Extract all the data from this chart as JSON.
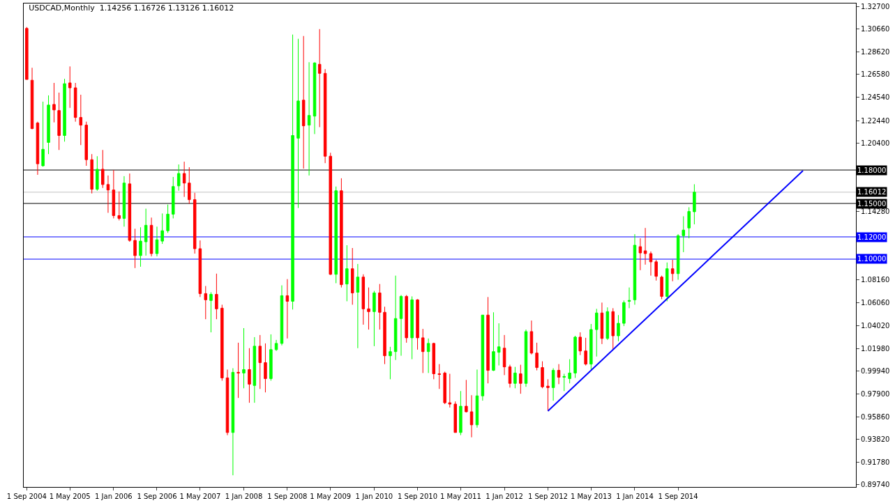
{
  "chart_data": {
    "type": "candlestick",
    "title": "USDCAD,Monthly  1.14256 1.16726 1.13126 1.16012",
    "x": [
      "2004-09",
      "2004-10",
      "2004-11",
      "2004-12",
      "2005-01",
      "2005-02",
      "2005-03",
      "2005-04",
      "2005-05",
      "2005-06",
      "2005-07",
      "2005-08",
      "2005-09",
      "2005-10",
      "2005-11",
      "2005-12",
      "2006-01",
      "2006-02",
      "2006-03",
      "2006-04",
      "2006-05",
      "2006-06",
      "2006-07",
      "2006-08",
      "2006-09",
      "2006-10",
      "2006-11",
      "2006-12",
      "2007-01",
      "2007-02",
      "2007-03",
      "2007-04",
      "2007-05",
      "2007-06",
      "2007-07",
      "2007-08",
      "2007-09",
      "2007-10",
      "2007-11",
      "2007-12",
      "2008-01",
      "2008-02",
      "2008-03",
      "2008-04",
      "2008-05",
      "2008-06",
      "2008-07",
      "2008-08",
      "2008-09",
      "2008-10",
      "2008-11",
      "2008-12",
      "2009-01",
      "2009-02",
      "2009-03",
      "2009-04",
      "2009-05",
      "2009-06",
      "2009-07",
      "2009-08",
      "2009-09",
      "2009-10",
      "2009-11",
      "2009-12",
      "2010-01",
      "2010-02",
      "2010-03",
      "2010-04",
      "2010-05",
      "2010-06",
      "2010-07",
      "2010-08",
      "2010-09",
      "2010-10",
      "2010-11",
      "2010-12",
      "2011-01",
      "2011-02",
      "2011-03",
      "2011-04",
      "2011-05",
      "2011-06",
      "2011-07",
      "2011-08",
      "2011-09",
      "2011-10",
      "2011-11",
      "2011-12",
      "2012-01",
      "2012-02",
      "2012-03",
      "2012-04",
      "2012-05",
      "2012-06",
      "2012-07",
      "2012-08",
      "2012-09",
      "2012-10",
      "2012-11",
      "2012-12",
      "2013-01",
      "2013-02",
      "2013-03",
      "2013-04",
      "2013-05",
      "2013-06",
      "2013-07",
      "2013-08",
      "2013-09",
      "2013-10",
      "2013-11",
      "2013-12",
      "2014-01",
      "2014-02",
      "2014-03",
      "2014-04",
      "2014-05",
      "2014-06",
      "2014-07",
      "2014-08",
      "2014-09",
      "2014-10",
      "2014-11",
      "2014-12"
    ],
    "ohlc": [
      [
        1.3071,
        1.3084,
        1.2613,
        1.2613
      ],
      [
        1.2606,
        1.2718,
        1.2166,
        1.2172
      ],
      [
        1.2222,
        1.2234,
        1.1757,
        1.1856
      ],
      [
        1.1838,
        1.2414,
        1.1831,
        1.1986
      ],
      [
        1.2048,
        1.247,
        1.1943,
        1.2383
      ],
      [
        1.2389,
        1.2582,
        1.2228,
        1.234
      ],
      [
        1.2334,
        1.2495,
        1.198,
        1.211
      ],
      [
        1.211,
        1.2619,
        1.2055,
        1.2575
      ],
      [
        1.2582,
        1.273,
        1.2358,
        1.2538
      ],
      [
        1.2538,
        1.2582,
        1.2234,
        1.2272
      ],
      [
        1.2272,
        1.2476,
        1.2024,
        1.2203
      ],
      [
        1.2203,
        1.2234,
        1.1838,
        1.1893
      ],
      [
        1.1893,
        1.1943,
        1.159,
        1.1627
      ],
      [
        1.1627,
        1.1924,
        1.1614,
        1.1807
      ],
      [
        1.1807,
        1.198,
        1.1639,
        1.167
      ],
      [
        1.167,
        1.1751,
        1.1416,
        1.1621
      ],
      [
        1.1621,
        1.18,
        1.1366,
        1.1391
      ],
      [
        1.1391,
        1.1608,
        1.1348,
        1.1366
      ],
      [
        1.1366,
        1.1745,
        1.1292,
        1.1683
      ],
      [
        1.1676,
        1.1769,
        1.1156,
        1.1168
      ],
      [
        1.1168,
        1.1273,
        1.092,
        1.1032
      ],
      [
        1.1032,
        1.1286,
        1.0932,
        1.1162
      ],
      [
        1.1156,
        1.1453,
        1.1032,
        1.1304
      ],
      [
        1.1304,
        1.1373,
        1.1025,
        1.105
      ],
      [
        1.105,
        1.1292,
        1.1025,
        1.1174
      ],
      [
        1.1162,
        1.141,
        1.1137,
        1.1255
      ],
      [
        1.1255,
        1.149,
        1.1236,
        1.1404
      ],
      [
        1.1404,
        1.1738,
        1.1366,
        1.1652
      ],
      [
        1.1658,
        1.185,
        1.1614,
        1.1769
      ],
      [
        1.1769,
        1.1875,
        1.1559,
        1.1683
      ],
      [
        1.1683,
        1.1825,
        1.1497,
        1.1534
      ],
      [
        1.1534,
        1.1596,
        1.105,
        1.1094
      ],
      [
        1.1094,
        1.1168,
        1.066,
        1.0691
      ],
      [
        1.0691,
        1.0759,
        1.0461,
        1.0635
      ],
      [
        1.0629,
        1.0703,
        1.0343,
        1.0684
      ],
      [
        1.0684,
        1.087,
        1.0461,
        1.0554
      ],
      [
        1.056,
        1.0591,
        0.9909,
        0.9934
      ],
      [
        0.9934,
        1.0009,
        0.942,
        0.9444
      ],
      [
        0.9444,
        1.0021,
        0.906,
        0.9984
      ],
      [
        0.9984,
        1.025,
        0.9754,
        0.9978
      ],
      [
        0.9978,
        1.0381,
        0.9841,
        1.0009
      ],
      [
        1.0009,
        1.0201,
        0.9711,
        0.9878
      ],
      [
        0.9866,
        1.03,
        0.9711,
        1.0219
      ],
      [
        1.0219,
        1.0319,
        0.9835,
        1.0071
      ],
      [
        1.0071,
        1.0244,
        0.9804,
        0.9928
      ],
      [
        0.9928,
        1.0325,
        0.9909,
        1.0188
      ],
      [
        1.0188,
        1.0275,
        1.0176,
        1.0244
      ],
      [
        1.0244,
        1.0765,
        1.0226,
        1.0672
      ],
      [
        1.0672,
        1.0821,
        1.0288,
        1.0622
      ],
      [
        1.0622,
        1.3016,
        1.0548,
        1.211
      ],
      [
        1.2086,
        1.2978,
        1.1459,
        1.242
      ],
      [
        1.2427,
        1.3003,
        1.1813,
        1.2197
      ],
      [
        1.2203,
        1.2768,
        1.1751,
        1.229
      ],
      [
        1.2284,
        1.2768,
        1.2123,
        1.2761
      ],
      [
        1.2749,
        1.3065,
        1.2185,
        1.2668
      ],
      [
        1.2668,
        1.2706,
        1.1862,
        1.1924
      ],
      [
        1.1924,
        1.1955,
        1.0858,
        1.0864
      ],
      [
        1.0864,
        1.1652,
        1.0784,
        1.1614
      ],
      [
        1.1614,
        1.1726,
        1.0746,
        1.0771
      ],
      [
        1.0777,
        1.1125,
        1.0622,
        1.0914
      ],
      [
        1.0914,
        1.11,
        1.0591,
        1.0697
      ],
      [
        1.0703,
        1.0957,
        1.0201,
        1.0839
      ],
      [
        1.0839,
        1.0864,
        1.0412,
        1.0554
      ],
      [
        1.0554,
        1.0746,
        1.0368,
        1.0529
      ],
      [
        1.0529,
        1.0715,
        1.0219,
        1.0697
      ],
      [
        1.0697,
        1.0777,
        1.0368,
        1.0523
      ],
      [
        1.0523,
        1.0573,
        1.0058,
        1.0133
      ],
      [
        1.0133,
        1.0213,
        0.9922,
        1.017
      ],
      [
        1.017,
        1.0852,
        1.0095,
        1.0467
      ],
      [
        1.0467,
        1.0678,
        1.0133,
        1.0666
      ],
      [
        1.0666,
        1.0678,
        1.025,
        1.0294
      ],
      [
        1.0294,
        1.0666,
        1.0102,
        1.0635
      ],
      [
        1.0635,
        1.0641,
        1.0188,
        1.0294
      ],
      [
        1.0294,
        1.0374,
        0.9978,
        1.017
      ],
      [
        1.017,
        1.0288,
        0.9978,
        1.0244
      ],
      [
        1.0244,
        1.025,
        0.9922,
        0.9971
      ],
      [
        0.9971,
        1.0058,
        0.9835,
        0.9965
      ],
      [
        0.9978,
        0.999,
        0.9699,
        0.9711
      ],
      [
        0.9711,
        0.9971,
        0.9668,
        0.9699
      ],
      [
        0.9699,
        0.9723,
        0.9444,
        0.9444
      ],
      [
        0.9444,
        0.9816,
        0.942,
        0.968
      ],
      [
        0.968,
        0.9916,
        0.9624,
        0.963
      ],
      [
        0.963,
        0.9779,
        0.9401,
        0.9513
      ],
      [
        0.9513,
        1.0009,
        0.9488,
        0.9773
      ],
      [
        0.9773,
        1.0498,
        0.973,
        1.0498
      ],
      [
        1.0498,
        1.066,
        0.9885,
        1.0002
      ],
      [
        1.0002,
        1.0523,
        0.9996,
        1.017
      ],
      [
        1.0164,
        1.0424,
        1.0046,
        1.0213
      ],
      [
        1.0201,
        1.0319,
        0.9959,
        1.0033
      ],
      [
        1.0033,
        1.0052,
        0.9847,
        0.9885
      ],
      [
        0.9885,
        1.0033,
        0.9841,
        0.9978
      ],
      [
        0.9971,
        1.0052,
        0.9792,
        0.9885
      ],
      [
        0.9885,
        1.0368,
        0.9854,
        1.035
      ],
      [
        1.035,
        1.0449,
        1.0145,
        1.0157
      ],
      [
        1.0157,
        1.025,
        1.0002,
        1.0027
      ],
      [
        1.0027,
        1.0083,
        0.9841,
        0.9854
      ],
      [
        0.986,
        0.9922,
        0.9637,
        0.9847
      ],
      [
        0.9847,
        1.0021,
        0.973,
        1.0002
      ],
      [
        1.0002,
        1.0058,
        0.9878,
        0.994
      ],
      [
        0.994,
        0.9971,
        0.9816,
        0.9947
      ],
      [
        0.9928,
        1.0102,
        0.9885,
        0.9978
      ],
      [
        0.9978,
        1.0312,
        0.9934,
        1.03
      ],
      [
        1.03,
        1.0343,
        1.0139,
        1.0176
      ],
      [
        1.0176,
        1.0294,
        1.0046,
        1.0058
      ],
      [
        1.0058,
        1.0418,
        1.0009,
        1.0368
      ],
      [
        1.0368,
        1.0554,
        1.0126,
        1.0517
      ],
      [
        1.0517,
        1.061,
        1.0238,
        1.0288
      ],
      [
        1.0288,
        1.0567,
        1.0275,
        1.0529
      ],
      [
        1.0529,
        1.056,
        1.0188,
        1.0312
      ],
      [
        1.0312,
        1.0498,
        1.0263,
        1.0424
      ],
      [
        1.0424,
        1.0629,
        1.0399,
        1.061
      ],
      [
        1.0622,
        1.0746,
        1.056,
        1.0629
      ],
      [
        1.0635,
        1.1224,
        1.0591,
        1.1125
      ],
      [
        1.1112,
        1.1187,
        1.0901,
        1.1056
      ],
      [
        1.1075,
        1.128,
        1.0951,
        1.105
      ],
      [
        1.105,
        1.1069,
        1.0852,
        1.0976
      ],
      [
        1.0976,
        1.0994,
        1.0808,
        1.0846
      ],
      [
        1.0839,
        1.0852,
        1.0641,
        1.0666
      ],
      [
        1.0666,
        1.097,
        1.0622,
        1.0914
      ],
      [
        1.0914,
        1.0994,
        1.0802,
        1.087
      ],
      [
        1.087,
        1.1224,
        1.0815,
        1.1211
      ],
      [
        1.1211,
        1.1385,
        1.1063,
        1.1261
      ],
      [
        1.128,
        1.1466,
        1.1187,
        1.1428
      ],
      [
        1.14256,
        1.16726,
        1.13126,
        1.16012
      ]
    ],
    "colors": [
      "#ff0000",
      "#ff0000",
      "#ff0000",
      "#00ff00",
      "#00ff00",
      "#ff0000",
      "#ff0000",
      "#00ff00",
      "#ff0000",
      "#ff0000",
      "#ff0000",
      "#ff0000",
      "#ff0000",
      "#00ff00",
      "#ff0000",
      "#ff0000",
      "#ff0000",
      "#ff0000",
      "#00ff00",
      "#ff0000",
      "#ff0000",
      "#00ff00",
      "#00ff00",
      "#ff0000",
      "#00ff00",
      "#00ff00",
      "#00ff00",
      "#00ff00",
      "#00ff00",
      "#ff0000",
      "#ff0000",
      "#ff0000",
      "#ff0000",
      "#ff0000",
      "#00ff00",
      "#ff0000",
      "#ff0000",
      "#ff0000",
      "#00ff00",
      "#ff0000",
      "#00ff00",
      "#ff0000",
      "#00ff00",
      "#ff0000",
      "#ff0000",
      "#00ff00",
      "#00ff00",
      "#00ff00",
      "#ff0000",
      "#00ff00",
      "#00ff00",
      "#ff0000",
      "#00ff00",
      "#00ff00",
      "#ff0000",
      "#ff0000",
      "#ff0000",
      "#00ff00",
      "#ff0000",
      "#00ff00",
      "#ff0000",
      "#00ff00",
      "#ff0000",
      "#ff0000",
      "#00ff00",
      "#ff0000",
      "#ff0000",
      "#00ff00",
      "#00ff00",
      "#00ff00",
      "#ff0000",
      "#00ff00",
      "#ff0000",
      "#ff0000",
      "#00ff00",
      "#ff0000",
      "#ff0000",
      "#ff0000",
      "#ff0000",
      "#ff0000",
      "#00ff00",
      "#ff0000",
      "#ff0000",
      "#00ff00",
      "#00ff00",
      "#ff0000",
      "#00ff00",
      "#00ff00",
      "#ff0000",
      "#ff0000",
      "#00ff00",
      "#ff0000",
      "#00ff00",
      "#ff0000",
      "#ff0000",
      "#ff0000",
      "#ff0000",
      "#00ff00",
      "#ff0000",
      "#00ff00",
      "#00ff00",
      "#00ff00",
      "#ff0000",
      "#ff0000",
      "#00ff00",
      "#00ff00",
      "#ff0000",
      "#00ff00",
      "#ff0000",
      "#00ff00",
      "#00ff00",
      "#00ff00",
      "#00ff00",
      "#ff0000",
      "#ff0000",
      "#ff0000",
      "#ff0000",
      "#ff0000",
      "#00ff00",
      "#ff0000",
      "#00ff00",
      "#00ff00",
      "#00ff00",
      "#00ff00"
    ],
    "series": [
      {
        "type": "line",
        "x": [
          "2012-09",
          "2016-08"
        ],
        "values": [
          0.9637,
          1.1794
        ],
        "color": "#0000ff"
      }
    ],
    "ref_lines": [
      {
        "axis": "y",
        "value": 1.18,
        "label": "1.18000",
        "color": "#000000"
      },
      {
        "axis": "y",
        "value": 1.16012,
        "label": "1.16012",
        "color": "#c0c0c0"
      },
      {
        "axis": "y",
        "value": 1.15,
        "label": "1.15000",
        "color": "#000000"
      },
      {
        "axis": "y",
        "value": 1.12,
        "label": "1.12000",
        "color": "#0000ff"
      },
      {
        "axis": "y",
        "value": 1.1,
        "label": "1.10000",
        "color": "#0000ff"
      }
    ],
    "xlim": [
      "2004-08-15",
      "2017-05-25"
    ],
    "xticks": [
      {
        "value": "2004-09",
        "label": "1 Sep 2004"
      },
      {
        "value": "2005-05",
        "label": "1 May 2005"
      },
      {
        "value": "2006-01",
        "label": "1 Jan 2006"
      },
      {
        "value": "2006-09",
        "label": "1 Sep 2006"
      },
      {
        "value": "2007-05",
        "label": "1 May 2007"
      },
      {
        "value": "2008-01",
        "label": "1 Jan 2008"
      },
      {
        "value": "2008-09",
        "label": "1 Sep 2008"
      },
      {
        "value": "2009-05",
        "label": "1 May 2009"
      },
      {
        "value": "2010-01",
        "label": "1 Jan 2010"
      },
      {
        "value": "2010-09",
        "label": "1 Sep 2010"
      },
      {
        "value": "2011-05",
        "label": "1 May 2011"
      },
      {
        "value": "2012-01",
        "label": "1 Jan 2012"
      },
      {
        "value": "2012-09",
        "label": "1 Sep 2012"
      },
      {
        "value": "2013-05",
        "label": "1 May 2013"
      },
      {
        "value": "2014-01",
        "label": "1 Jan 2014"
      },
      {
        "value": "2014-09",
        "label": "1 Sep 2014"
      }
    ],
    "ylim": [
      0.8955,
      1.3295
    ],
    "yticks": [
      {
        "value": 1.327,
        "label": "1.32700"
      },
      {
        "value": 1.3066,
        "label": "1.30660"
      },
      {
        "value": 1.2862,
        "label": "1.28620"
      },
      {
        "value": 1.2658,
        "label": "1.26580"
      },
      {
        "value": 1.2454,
        "label": "1.24540"
      },
      {
        "value": 1.2244,
        "label": "1.22440"
      },
      {
        "value": 1.204,
        "label": "1.20400"
      },
      {
        "value": 1.1428,
        "label": "1.14280"
      },
      {
        "value": 1.0816,
        "label": "1.08160"
      },
      {
        "value": 1.0606,
        "label": "1.06060"
      },
      {
        "value": 1.0402,
        "label": "1.04020"
      },
      {
        "value": 1.0198,
        "label": "1.01980"
      },
      {
        "value": 0.9994,
        "label": "0.99940"
      },
      {
        "value": 0.979,
        "label": "0.97900"
      },
      {
        "value": 0.9586,
        "label": "0.95860"
      },
      {
        "value": 0.9382,
        "label": "0.93820"
      },
      {
        "value": 0.9178,
        "label": "0.91780"
      },
      {
        "value": 0.8974,
        "label": "0.89740"
      }
    ]
  }
}
